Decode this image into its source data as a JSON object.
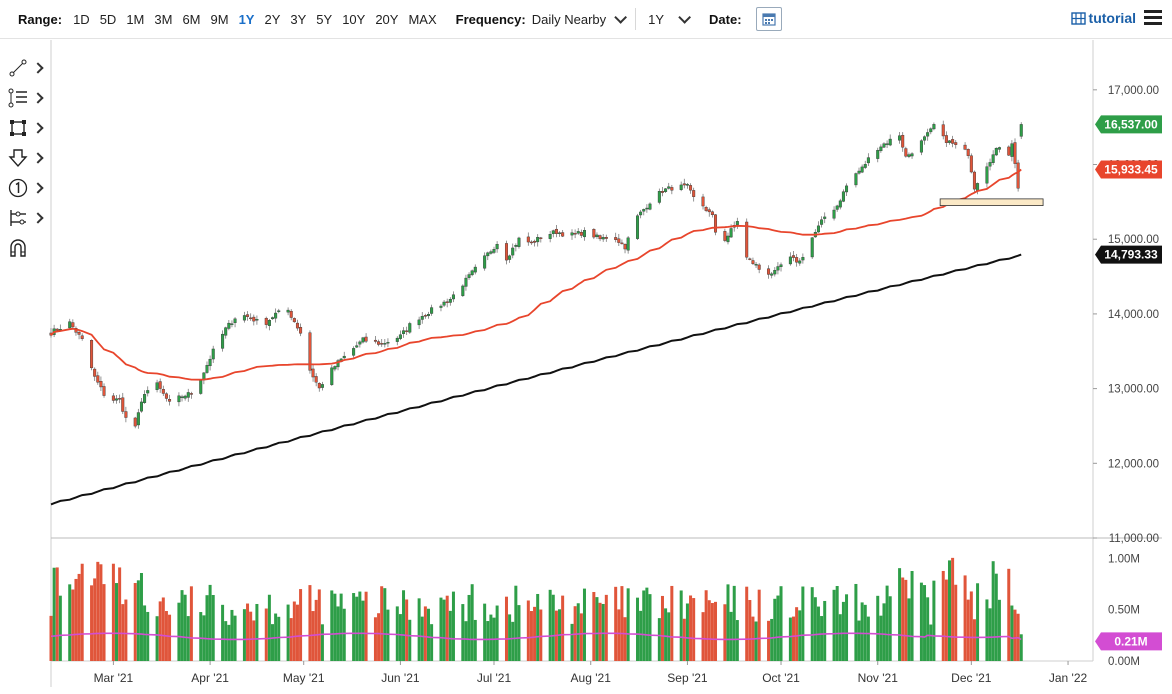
{
  "toolbar": {
    "range_label": "Range:",
    "ranges": [
      "1D",
      "5D",
      "1M",
      "3M",
      "6M",
      "9M",
      "1Y",
      "2Y",
      "3Y",
      "5Y",
      "10Y",
      "20Y",
      "MAX"
    ],
    "active_range": "1Y",
    "frequency_label": "Frequency:",
    "frequency_value": "Daily Nearby",
    "period_value": "1Y",
    "date_label": "Date:",
    "tutorial_label": "tutorial",
    "icons": [
      "calendar-icon",
      "tutorial-icon",
      "hamburger-menu-icon",
      "chevron-down-icon"
    ]
  },
  "drawing_tools": [
    "line-tool-icon",
    "fib-tool-icon",
    "rectangle-tool-icon",
    "arrow-down-tool-icon",
    "count-tool-icon",
    "measure-tool-icon",
    "magnet-icon"
  ],
  "colors": {
    "up": "#2e9e48",
    "down": "#e0553a",
    "sma_short": "#e8452c",
    "sma_long": "#111111",
    "volume_avg": "#d34dd3",
    "highlight_fill": "#fbe9c6"
  },
  "chart_data": {
    "type": "candlestick",
    "price_axis": {
      "min": 11000,
      "max": 17600,
      "ticks": [
        11000,
        12000,
        13000,
        14000,
        15000,
        16000,
        17000
      ],
      "tick_labels": [
        "11,000.00",
        "12,000.00",
        "13,000.00",
        "14,000.00",
        "15,000.00",
        "16,000.00",
        "17,000.00"
      ]
    },
    "volume_axis": {
      "min": 0,
      "max": 1.1,
      "ticks": [
        0,
        0.5,
        1.0
      ],
      "tick_labels": [
        "0.00M",
        "0.50M",
        "1.00M"
      ]
    },
    "x_tick_labels": [
      "Mar '21",
      "Apr '21",
      "May '21",
      "Jun '21",
      "Jul '21",
      "Aug '21",
      "Sep '21",
      "Oct '21",
      "Nov '21",
      "Dec '21",
      "Jan '22"
    ],
    "x_tick_days": [
      20,
      51,
      81,
      112,
      142,
      173,
      204,
      234,
      265,
      295,
      326
    ],
    "start_date": "2021-02-09",
    "end_day": 334,
    "last_day": 313,
    "last_labels": [
      {
        "value": 16537.0,
        "label": "16,537.00",
        "color": "#2e9e48"
      },
      {
        "value": 15933.45,
        "label": "15,933.45",
        "color": "#e8452c"
      },
      {
        "value": 14793.33,
        "label": "14,793.33",
        "color": "#111111"
      }
    ],
    "volume_last": {
      "value": 0.21,
      "label": "0.21M",
      "color": "#d34dd3"
    },
    "close_anchors": [
      [
        0,
        13750
      ],
      [
        6,
        13880
      ],
      [
        10,
        13650
      ],
      [
        14,
        13150
      ],
      [
        18,
        12850
      ],
      [
        22,
        12850
      ],
      [
        26,
        12350
      ],
      [
        30,
        12950
      ],
      [
        34,
        13050
      ],
      [
        38,
        12800
      ],
      [
        42,
        12900
      ],
      [
        46,
        12950
      ],
      [
        52,
        13500
      ],
      [
        56,
        13800
      ],
      [
        60,
        14000
      ],
      [
        64,
        13950
      ],
      [
        68,
        13850
      ],
      [
        72,
        14000
      ],
      [
        76,
        14050
      ],
      [
        80,
        13750
      ],
      [
        83,
        13250
      ],
      [
        86,
        13000
      ],
      [
        88,
        13150
      ],
      [
        92,
        13350
      ],
      [
        96,
        13500
      ],
      [
        100,
        13650
      ],
      [
        106,
        13600
      ],
      [
        112,
        13700
      ],
      [
        116,
        13900
      ],
      [
        120,
        14000
      ],
      [
        124,
        14100
      ],
      [
        128,
        14200
      ],
      [
        132,
        14400
      ],
      [
        136,
        14600
      ],
      [
        140,
        14800
      ],
      [
        144,
        15000
      ],
      [
        146,
        14750
      ],
      [
        150,
        15000
      ],
      [
        154,
        14950
      ],
      [
        158,
        15050
      ],
      [
        162,
        15100
      ],
      [
        166,
        15050
      ],
      [
        172,
        15100
      ],
      [
        176,
        15000
      ],
      [
        180,
        15050
      ],
      [
        184,
        14900
      ],
      [
        188,
        15300
      ],
      [
        192,
        15500
      ],
      [
        196,
        15650
      ],
      [
        200,
        15700
      ],
      [
        204,
        15700
      ],
      [
        206,
        15550
      ],
      [
        208,
        15500
      ],
      [
        212,
        15300
      ],
      [
        214,
        14900
      ],
      [
        217,
        15050
      ],
      [
        220,
        15250
      ],
      [
        223,
        14750
      ],
      [
        226,
        14650
      ],
      [
        228,
        14550
      ],
      [
        232,
        14550
      ],
      [
        236,
        14750
      ],
      [
        240,
        14700
      ],
      [
        243,
        14950
      ],
      [
        248,
        15300
      ],
      [
        252,
        15450
      ],
      [
        256,
        15800
      ],
      [
        260,
        15950
      ],
      [
        264,
        16200
      ],
      [
        268,
        16300
      ],
      [
        272,
        16400
      ],
      [
        274,
        16100
      ],
      [
        278,
        16250
      ],
      [
        282,
        16450
      ],
      [
        284,
        16600
      ],
      [
        286,
        16350
      ],
      [
        290,
        16250
      ],
      [
        294,
        16150
      ],
      [
        296,
        15700
      ],
      [
        300,
        16000
      ],
      [
        304,
        16250
      ],
      [
        306,
        16000
      ],
      [
        308,
        16300
      ],
      [
        310,
        15700
      ],
      [
        312,
        15650
      ],
      [
        314,
        15900
      ],
      [
        318,
        16100
      ],
      [
        320,
        16300
      ],
      [
        322,
        16537
      ]
    ],
    "highlight_zone": {
      "x0": 285,
      "x1": 318,
      "y_low": 15450,
      "y_high": 15540
    }
  }
}
